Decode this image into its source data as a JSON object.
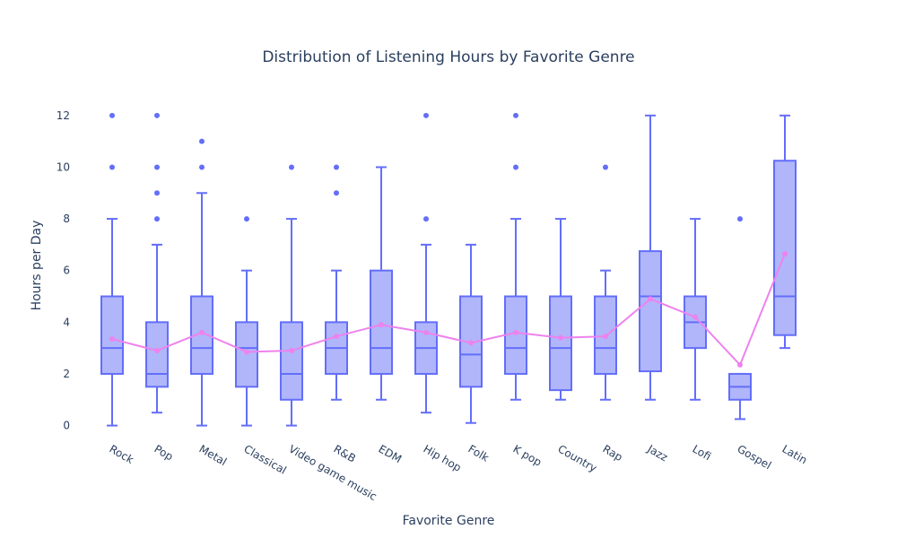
{
  "chart_data": {
    "type": "box",
    "title": "Distribution of Listening Hours by Favorite Genre",
    "xlabel": "Favorite Genre",
    "ylabel": "Hours per Day",
    "ylim": [
      -0.5,
      13
    ],
    "yticks": [
      0,
      2,
      4,
      6,
      8,
      10,
      12
    ],
    "grid": false,
    "legend": "none",
    "colors": {
      "box_line": "#636efa",
      "box_fill": "#b0b6f9",
      "mean_line": "#ee82ee",
      "text": "#2a3f5f"
    },
    "categories": [
      "Rock",
      "Pop",
      "Metal",
      "Classical",
      "Video game music",
      "R&B",
      "EDM",
      "Hip hop",
      "Folk",
      "K pop",
      "Country",
      "Rap",
      "Jazz",
      "Lofi",
      "Gospel",
      "Latin"
    ],
    "boxes": [
      {
        "q1": 2,
        "median": 3,
        "q3": 5,
        "low": 0,
        "high": 8,
        "outliers": [
          10,
          12
        ]
      },
      {
        "q1": 1.5,
        "median": 2,
        "q3": 4,
        "low": 0.5,
        "high": 7,
        "outliers": [
          8,
          9,
          10,
          12
        ]
      },
      {
        "q1": 2,
        "median": 3,
        "q3": 5,
        "low": 0,
        "high": 9,
        "outliers": [
          10,
          11
        ]
      },
      {
        "q1": 1.5,
        "median": 3,
        "q3": 4,
        "low": 0,
        "high": 6,
        "outliers": [
          8
        ]
      },
      {
        "q1": 1,
        "median": 2,
        "q3": 4,
        "low": 0,
        "high": 8,
        "outliers": [
          10
        ]
      },
      {
        "q1": 2,
        "median": 3,
        "q3": 4,
        "low": 1,
        "high": 6,
        "outliers": [
          9,
          10
        ]
      },
      {
        "q1": 2,
        "median": 3,
        "q3": 6,
        "low": 1,
        "high": 10,
        "outliers": []
      },
      {
        "q1": 2,
        "median": 3,
        "q3": 4,
        "low": 0.5,
        "high": 7,
        "outliers": [
          8,
          12
        ]
      },
      {
        "q1": 1.5,
        "median": 2.75,
        "q3": 5,
        "low": 0.1,
        "high": 7,
        "outliers": []
      },
      {
        "q1": 2,
        "median": 3,
        "q3": 5,
        "low": 1,
        "high": 8,
        "outliers": [
          10,
          12
        ]
      },
      {
        "q1": 1.37,
        "median": 3,
        "q3": 5,
        "low": 1,
        "high": 8,
        "outliers": []
      },
      {
        "q1": 2,
        "median": 3,
        "q3": 5,
        "low": 1,
        "high": 6,
        "outliers": [
          10
        ]
      },
      {
        "q1": 2.1,
        "median": 5,
        "q3": 6.75,
        "low": 1,
        "high": 12,
        "outliers": []
      },
      {
        "q1": 3,
        "median": 4,
        "q3": 5,
        "low": 1,
        "high": 8,
        "outliers": []
      },
      {
        "q1": 1,
        "median": 1.5,
        "q3": 2,
        "low": 0.25,
        "high": 2,
        "outliers": [
          8
        ]
      },
      {
        "q1": 3.5,
        "median": 5,
        "q3": 10.25,
        "low": 3,
        "high": 12,
        "outliers": []
      }
    ],
    "means": [
      3.35,
      2.9,
      3.6,
      2.85,
      2.9,
      3.45,
      3.9,
      3.6,
      3.2,
      3.6,
      3.4,
      3.45,
      4.9,
      4.2,
      2.35,
      6.65
    ]
  }
}
